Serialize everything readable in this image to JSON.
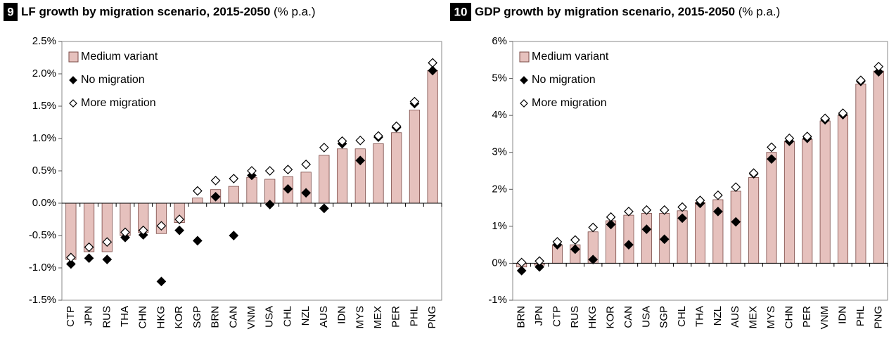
{
  "chart_data": [
    {
      "type": "bar",
      "number": "9",
      "title": "LF growth by migration scenario, 2015-2050",
      "title_suffix": " (% p.a.)",
      "categories": [
        "CTP",
        "JPN",
        "RUS",
        "THA",
        "CHN",
        "HKG",
        "KOR",
        "SGP",
        "BRN",
        "CAN",
        "VNM",
        "USA",
        "CHL",
        "NZL",
        "AUS",
        "IDN",
        "MYS",
        "MEX",
        "PER",
        "PHL",
        "PNG"
      ],
      "series": [
        {
          "name": "Medium variant",
          "marker": "bar",
          "color": "#e6c1bd",
          "values": [
            -0.87,
            -0.75,
            -0.75,
            -0.5,
            -0.45,
            -0.47,
            -0.3,
            0.08,
            0.21,
            0.26,
            0.4,
            0.37,
            0.41,
            0.48,
            0.74,
            0.84,
            0.84,
            0.92,
            1.09,
            1.44,
            2.05
          ]
        },
        {
          "name": "No migration",
          "marker": "diamond",
          "color": "#000000",
          "values": [
            -0.94,
            -0.85,
            -0.87,
            -0.53,
            -0.49,
            -1.21,
            -0.42,
            -0.58,
            0.1,
            -0.5,
            0.43,
            -0.02,
            0.22,
            0.16,
            -0.08,
            0.92,
            0.66,
            1.02,
            1.17,
            1.54,
            2.05
          ]
        },
        {
          "name": "More migration",
          "marker": "diamond",
          "color": "#ffffff",
          "values": [
            -0.84,
            -0.68,
            -0.6,
            -0.45,
            -0.42,
            -0.35,
            -0.25,
            0.19,
            0.35,
            0.38,
            0.5,
            0.5,
            0.52,
            0.6,
            0.86,
            0.96,
            0.97,
            1.04,
            1.19,
            1.57,
            2.17
          ]
        }
      ],
      "ylim": [
        -1.5,
        2.5
      ],
      "yticks": [
        {
          "value": -1.5,
          "label": "-1.5%"
        },
        {
          "value": -1.0,
          "label": "-1.0%"
        },
        {
          "value": -0.5,
          "label": "-0.5%"
        },
        {
          "value": 0,
          "label": "0.0%"
        },
        {
          "value": 0.5,
          "label": "0.5%"
        },
        {
          "value": 1.0,
          "label": "1.0%"
        },
        {
          "value": 1.5,
          "label": "1.5%"
        },
        {
          "value": 2.0,
          "label": "2.0%"
        },
        {
          "value": 2.5,
          "label": "2.5%"
        }
      ],
      "legend": "top-left"
    },
    {
      "type": "bar",
      "number": "10",
      "title": "GDP growth by migration scenario, 2015-2050",
      "title_suffix": " (% p.a.)",
      "categories": [
        "BRN",
        "JPN",
        "CTP",
        "RUS",
        "HKG",
        "KOR",
        "CAN",
        "USA",
        "SGP",
        "CHL",
        "THA",
        "NZL",
        "AUS",
        "MEX",
        "MYS",
        "CHN",
        "PER",
        "VNM",
        "IDN",
        "PHL",
        "PNG"
      ],
      "series": [
        {
          "name": "Medium variant",
          "marker": "bar",
          "color": "#e6c1bd",
          "values": [
            -0.1,
            -0.05,
            0.5,
            0.5,
            0.85,
            1.15,
            1.3,
            1.35,
            1.35,
            1.42,
            1.65,
            1.72,
            1.95,
            2.32,
            3.0,
            3.3,
            3.35,
            3.85,
            4.0,
            4.85,
            5.2
          ]
        },
        {
          "name": "No migration",
          "marker": "diamond",
          "color": "#000000",
          "values": [
            -0.2,
            -0.1,
            0.5,
            0.38,
            0.1,
            1.05,
            0.5,
            0.92,
            0.65,
            1.22,
            1.62,
            1.4,
            1.12,
            2.42,
            2.82,
            3.3,
            3.38,
            3.88,
            4.02,
            4.92,
            5.18
          ]
        },
        {
          "name": "More migration",
          "marker": "diamond",
          "color": "#ffffff",
          "values": [
            0.02,
            0.06,
            0.58,
            0.63,
            0.97,
            1.25,
            1.4,
            1.44,
            1.44,
            1.52,
            1.7,
            1.84,
            2.06,
            2.44,
            3.14,
            3.38,
            3.43,
            3.92,
            4.06,
            4.95,
            5.32
          ]
        }
      ],
      "ylim": [
        -1,
        6
      ],
      "yticks": [
        {
          "value": -1,
          "label": "-1%"
        },
        {
          "value": 0,
          "label": "0%"
        },
        {
          "value": 1,
          "label": "1%"
        },
        {
          "value": 2,
          "label": "2%"
        },
        {
          "value": 3,
          "label": "3%"
        },
        {
          "value": 4,
          "label": "4%"
        },
        {
          "value": 5,
          "label": "5%"
        },
        {
          "value": 6,
          "label": "6%"
        }
      ],
      "legend": "top-left"
    }
  ]
}
